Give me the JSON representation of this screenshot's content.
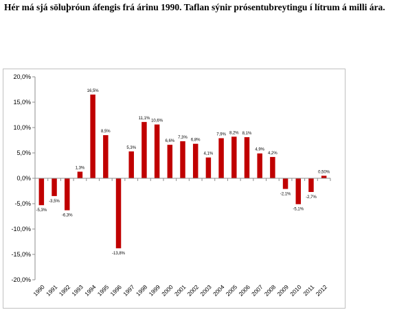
{
  "heading": "Hér má sjá söluþróun áfengis frá árinu 1990. Taflan sýnir prósentubreytingu í lítrum á milli ára.",
  "chart_data": {
    "type": "bar",
    "categories": [
      "1990",
      "1991",
      "1992",
      "1993",
      "1994",
      "1995",
      "1996",
      "1997",
      "1998",
      "1999",
      "2000",
      "2001",
      "2002",
      "2003",
      "2004",
      "2005",
      "2006",
      "2007",
      "2008",
      "2009",
      "2010",
      "2011",
      "2012"
    ],
    "values": [
      -5.3,
      -3.5,
      -6.3,
      1.3,
      16.5,
      8.5,
      -13.8,
      5.3,
      11.1,
      10.6,
      6.6,
      7.3,
      6.8,
      4.1,
      7.9,
      8.2,
      8.1,
      4.9,
      4.2,
      -2.1,
      -5.1,
      -2.7,
      0.5
    ],
    "data_labels": [
      "-5,3%",
      "-3,5%",
      "-6,3%",
      "1,3%",
      "16,5%",
      "8,5%",
      "-13,8%",
      "5,3%",
      "11,1%",
      "10,6%",
      "6,6%",
      "7,3%",
      "6,8%",
      "4,1%",
      "7,9%",
      "8,2%",
      "8,1%",
      "4,9%",
      "4,2%",
      "-2,1%",
      "-5,1%",
      "-2,7%",
      "0,50%"
    ],
    "y_ticks": [
      20,
      15,
      10,
      5,
      0,
      -5,
      -10,
      -15,
      -20
    ],
    "y_tick_labels": [
      "20,0%",
      "15,0%",
      "10,0%",
      "5,0%",
      "0,0%",
      "-5,0%",
      "-10,0%",
      "-15,0%",
      "-20,0%"
    ],
    "ylim": [
      -20,
      20
    ],
    "bar_color": "#c00000",
    "grid": false,
    "legend": "none"
  }
}
